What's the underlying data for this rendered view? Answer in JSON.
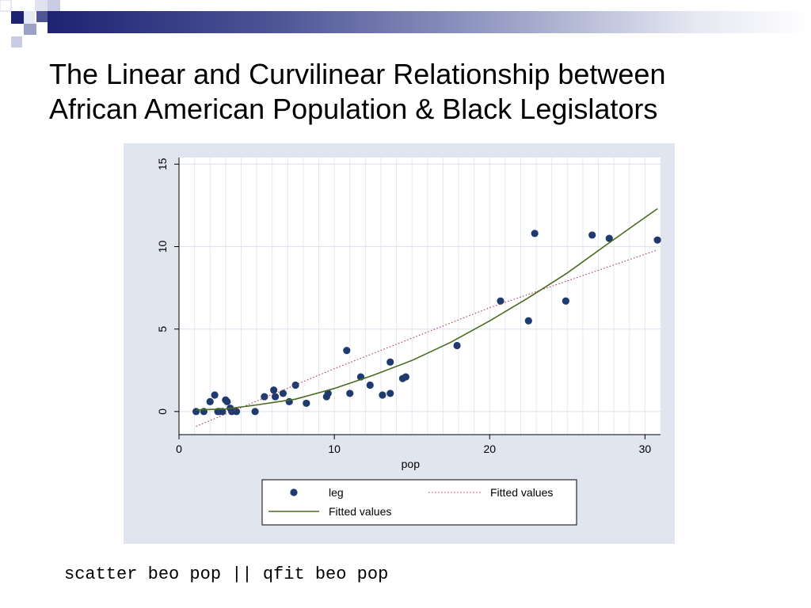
{
  "slide": {
    "title_line1": "The Linear and Curvilinear Relationship between",
    "title_line2": "African American Population & Black Legislators",
    "command": "scatter beo pop || qfit beo pop",
    "decor_colors": [
      "#1e2272",
      "#4e5596",
      "#9aa0c6"
    ]
  },
  "chart_data": {
    "type": "scatter",
    "title": "",
    "xlabel": "pop",
    "ylabel": "",
    "xlim": [
      0,
      31
    ],
    "ylim": [
      -1.4,
      15.4
    ],
    "x_ticks": [
      0,
      10,
      20,
      30
    ],
    "y_ticks": [
      0,
      5,
      10,
      15
    ],
    "grid": true,
    "legend_position": "bottom",
    "colors": {
      "panel_background": "#e1e5ef",
      "plot_background": "#ffffff",
      "grid": "#e4e8f1",
      "points": "#1e3a6e",
      "linear_fit": "#b03060",
      "quadratic_fit": "#4a6a20"
    },
    "legend": [
      {
        "label": "leg",
        "marker": "point"
      },
      {
        "label": "Fitted values",
        "marker": "dotted-line"
      },
      {
        "label": "Fitted values",
        "marker": "solid-line"
      }
    ],
    "series": [
      {
        "name": "leg",
        "kind": "points",
        "points": [
          {
            "x": 1.1,
            "y": 0.0
          },
          {
            "x": 1.6,
            "y": 0.0
          },
          {
            "x": 2.0,
            "y": 0.6
          },
          {
            "x": 2.3,
            "y": 1.0
          },
          {
            "x": 2.5,
            "y": 0.0
          },
          {
            "x": 2.6,
            "y": 0.0
          },
          {
            "x": 2.8,
            "y": 0.0
          },
          {
            "x": 3.0,
            "y": 0.7
          },
          {
            "x": 3.1,
            "y": 0.6
          },
          {
            "x": 3.3,
            "y": 0.2
          },
          {
            "x": 3.4,
            "y": 0.0
          },
          {
            "x": 3.7,
            "y": 0.0
          },
          {
            "x": 4.9,
            "y": 0.0
          },
          {
            "x": 5.5,
            "y": 0.9
          },
          {
            "x": 6.1,
            "y": 1.3
          },
          {
            "x": 6.2,
            "y": 0.9
          },
          {
            "x": 6.7,
            "y": 1.1
          },
          {
            "x": 7.1,
            "y": 0.6
          },
          {
            "x": 7.5,
            "y": 1.6
          },
          {
            "x": 8.2,
            "y": 0.5
          },
          {
            "x": 9.5,
            "y": 0.9
          },
          {
            "x": 9.6,
            "y": 1.1
          },
          {
            "x": 10.8,
            "y": 3.7
          },
          {
            "x": 11.0,
            "y": 1.1
          },
          {
            "x": 11.7,
            "y": 2.1
          },
          {
            "x": 12.3,
            "y": 1.6
          },
          {
            "x": 13.1,
            "y": 1.0
          },
          {
            "x": 13.6,
            "y": 1.1
          },
          {
            "x": 13.6,
            "y": 3.0
          },
          {
            "x": 14.4,
            "y": 2.0
          },
          {
            "x": 14.6,
            "y": 2.1
          },
          {
            "x": 17.9,
            "y": 4.0
          },
          {
            "x": 20.7,
            "y": 6.7
          },
          {
            "x": 22.5,
            "y": 5.5
          },
          {
            "x": 22.9,
            "y": 10.8
          },
          {
            "x": 24.9,
            "y": 6.7
          },
          {
            "x": 26.6,
            "y": 10.7
          },
          {
            "x": 27.7,
            "y": 10.5
          },
          {
            "x": 30.8,
            "y": 10.4
          }
        ]
      },
      {
        "name": "Fitted values",
        "kind": "dotted-line",
        "points": [
          {
            "x": 1.1,
            "y": -0.9
          },
          {
            "x": 10.0,
            "y": 2.6
          },
          {
            "x": 20.0,
            "y": 6.3
          },
          {
            "x": 30.8,
            "y": 9.8
          }
        ]
      },
      {
        "name": "Fitted values",
        "kind": "solid-line",
        "points": [
          {
            "x": 1.1,
            "y": 0.1
          },
          {
            "x": 3.0,
            "y": 0.15
          },
          {
            "x": 5.0,
            "y": 0.4
          },
          {
            "x": 7.5,
            "y": 0.75
          },
          {
            "x": 10.0,
            "y": 1.4
          },
          {
            "x": 12.5,
            "y": 2.2
          },
          {
            "x": 15.0,
            "y": 3.1
          },
          {
            "x": 17.5,
            "y": 4.2
          },
          {
            "x": 20.0,
            "y": 5.5
          },
          {
            "x": 22.5,
            "y": 6.9
          },
          {
            "x": 25.0,
            "y": 8.4
          },
          {
            "x": 27.5,
            "y": 10.1
          },
          {
            "x": 30.8,
            "y": 12.3
          }
        ]
      }
    ]
  }
}
